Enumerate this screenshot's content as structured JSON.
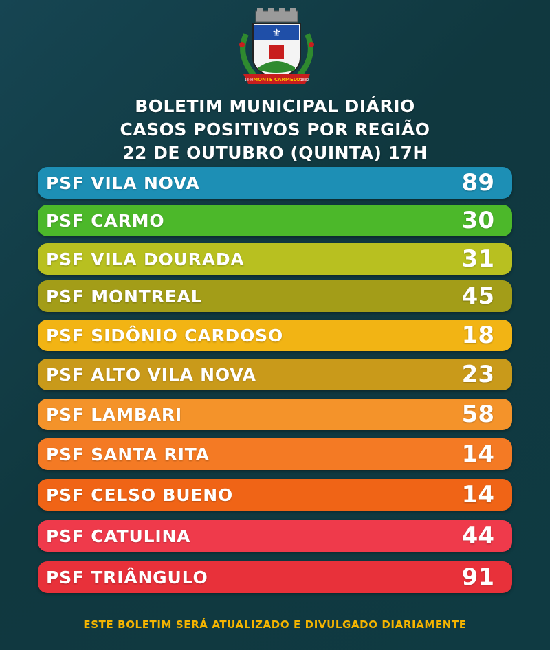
{
  "crest": {
    "banner_text": "MONTE CARMELO",
    "year_left": "1840",
    "year_right": "1882"
  },
  "header": {
    "line1": "BOLETIM MUNICIPAL DIÁRIO",
    "line2": "CASOS POSITIVOS POR REGIÃO",
    "line3": "22 DE OUTUBRO (QUINTA) 17H"
  },
  "regions": [
    {
      "label": "PSF VILA NOVA",
      "value": "89",
      "color": "#1d8fb5"
    },
    {
      "label": "PSF CARMO",
      "value": "30",
      "color": "#4cb82a"
    },
    {
      "label": "PSF VILA DOURADA",
      "value": "31",
      "color": "#b8c020"
    },
    {
      "label": "PSF MONTREAL",
      "value": "45",
      "color": "#a39d18"
    },
    {
      "label": "PSF SIDÔNIO CARDOSO",
      "value": "18",
      "color": "#f2b414"
    },
    {
      "label": "PSF ALTO VILA NOVA",
      "value": "23",
      "color": "#c99a1a"
    },
    {
      "label": "PSF LAMBARI",
      "value": "58",
      "color": "#f4932a"
    },
    {
      "label": "PSF SANTA RITA",
      "value": "14",
      "color": "#f47a24"
    },
    {
      "label": "PSF CELSO BUENO",
      "value": "14",
      "color": "#f06416"
    },
    {
      "label": "PSF CATULINA",
      "value": "44",
      "color": "#ef3a4b"
    },
    {
      "label": "PSF TRIÂNGULO",
      "value": "91",
      "color": "#e8313a"
    }
  ],
  "footer": {
    "text": "ESTE BOLETIM SERÁ ATUALIZADO E DIVULGADO DIARIAMENTE"
  }
}
